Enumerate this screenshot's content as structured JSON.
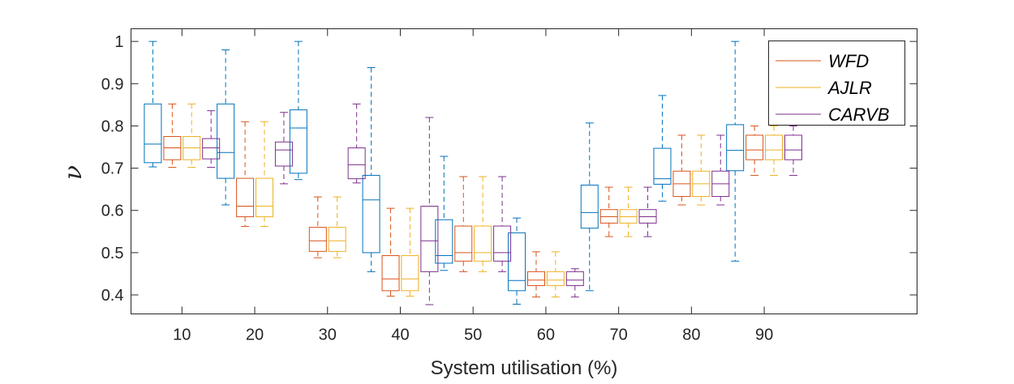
{
  "chart_data": {
    "type": "boxplot",
    "title": "",
    "xlabel": "System utilisation (%)",
    "ylabel": "ν",
    "ylim": [
      0.355,
      1.03
    ],
    "yticks": [
      0.4,
      0.5,
      0.6,
      0.7,
      0.8,
      0.9,
      1
    ],
    "ytick_labels": [
      "0.4",
      "0.5",
      "0.6",
      "0.7",
      "0.8",
      "0.9",
      "1"
    ],
    "xlim": [
      3,
      111
    ],
    "categories": [
      10,
      20,
      30,
      40,
      50,
      60,
      70,
      80,
      90
    ],
    "category_labels": [
      "10",
      "20",
      "30",
      "40",
      "50",
      "60",
      "70",
      "80",
      "90"
    ],
    "grid": false,
    "legend_position": "top-right",
    "series": [
      {
        "name": "",
        "color": "#0072BD",
        "offset": -4,
        "boxes": [
          {
            "min": 0.703,
            "q1": 0.713,
            "median": 0.757,
            "q3": 0.852,
            "max": 1.0
          },
          {
            "min": 0.613,
            "q1": 0.676,
            "median": 0.737,
            "q3": 0.852,
            "max": 0.98
          },
          {
            "min": 0.673,
            "q1": 0.688,
            "median": 0.795,
            "q3": 0.838,
            "max": 1.0
          },
          {
            "min": 0.455,
            "q1": 0.5,
            "median": 0.625,
            "q3": 0.683,
            "max": 0.938
          },
          {
            "min": 0.458,
            "q1": 0.475,
            "median": 0.493,
            "q3": 0.578,
            "max": 0.728
          },
          {
            "min": 0.378,
            "q1": 0.41,
            "median": 0.434,
            "q3": 0.547,
            "max": 0.582
          },
          {
            "min": 0.41,
            "q1": 0.558,
            "median": 0.595,
            "q3": 0.66,
            "max": 0.807
          },
          {
            "min": 0.622,
            "q1": 0.662,
            "median": 0.675,
            "q3": 0.747,
            "max": 0.872
          },
          {
            "min": 0.48,
            "q1": 0.694,
            "median": 0.742,
            "q3": 0.803,
            "max": 1.0
          }
        ]
      },
      {
        "name": "WFD",
        "color": "#D95319",
        "offset": -1.33,
        "boxes": [
          {
            "min": 0.702,
            "q1": 0.72,
            "median": 0.748,
            "q3": 0.775,
            "max": 0.852
          },
          {
            "min": 0.562,
            "q1": 0.585,
            "median": 0.61,
            "q3": 0.676,
            "max": 0.81
          },
          {
            "min": 0.488,
            "q1": 0.503,
            "median": 0.528,
            "q3": 0.56,
            "max": 0.632
          },
          {
            "min": 0.397,
            "q1": 0.41,
            "median": 0.438,
            "q3": 0.493,
            "max": 0.605
          },
          {
            "min": 0.455,
            "q1": 0.48,
            "median": 0.5,
            "q3": 0.563,
            "max": 0.68
          },
          {
            "min": 0.395,
            "q1": 0.422,
            "median": 0.435,
            "q3": 0.455,
            "max": 0.502
          },
          {
            "min": 0.538,
            "q1": 0.57,
            "median": 0.585,
            "q3": 0.602,
            "max": 0.655
          },
          {
            "min": 0.613,
            "q1": 0.633,
            "median": 0.663,
            "q3": 0.693,
            "max": 0.778
          },
          {
            "min": 0.683,
            "q1": 0.72,
            "median": 0.743,
            "q3": 0.778,
            "max": 0.8
          }
        ]
      },
      {
        "name": "AJLR",
        "color": "#EDB120",
        "offset": 1.33,
        "boxes": [
          {
            "min": 0.702,
            "q1": 0.72,
            "median": 0.748,
            "q3": 0.775,
            "max": 0.852
          },
          {
            "min": 0.562,
            "q1": 0.585,
            "median": 0.61,
            "q3": 0.676,
            "max": 0.81
          },
          {
            "min": 0.488,
            "q1": 0.503,
            "median": 0.528,
            "q3": 0.56,
            "max": 0.632
          },
          {
            "min": 0.397,
            "q1": 0.41,
            "median": 0.438,
            "q3": 0.493,
            "max": 0.605
          },
          {
            "min": 0.455,
            "q1": 0.48,
            "median": 0.5,
            "q3": 0.563,
            "max": 0.68
          },
          {
            "min": 0.395,
            "q1": 0.422,
            "median": 0.435,
            "q3": 0.455,
            "max": 0.502
          },
          {
            "min": 0.538,
            "q1": 0.57,
            "median": 0.585,
            "q3": 0.602,
            "max": 0.655
          },
          {
            "min": 0.613,
            "q1": 0.633,
            "median": 0.663,
            "q3": 0.693,
            "max": 0.778
          },
          {
            "min": 0.683,
            "q1": 0.72,
            "median": 0.743,
            "q3": 0.778,
            "max": 0.8
          }
        ]
      },
      {
        "name": "CARVB",
        "color": "#7E2F8E",
        "offset": 4,
        "boxes": [
          {
            "min": 0.702,
            "q1": 0.722,
            "median": 0.748,
            "q3": 0.77,
            "max": 0.836
          },
          {
            "min": 0.663,
            "q1": 0.705,
            "median": 0.743,
            "q3": 0.762,
            "max": 0.832
          },
          {
            "min": 0.665,
            "q1": 0.675,
            "median": 0.708,
            "q3": 0.748,
            "max": 0.852
          },
          {
            "min": 0.377,
            "q1": 0.455,
            "median": 0.528,
            "q3": 0.61,
            "max": 0.82
          },
          {
            "min": 0.455,
            "q1": 0.48,
            "median": 0.5,
            "q3": 0.563,
            "max": 0.68
          },
          {
            "min": 0.395,
            "q1": 0.422,
            "median": 0.435,
            "q3": 0.455,
            "max": 0.462
          },
          {
            "min": 0.538,
            "q1": 0.57,
            "median": 0.585,
            "q3": 0.602,
            "max": 0.655
          },
          {
            "min": 0.613,
            "q1": 0.633,
            "median": 0.663,
            "q3": 0.693,
            "max": 0.778
          },
          {
            "min": 0.683,
            "q1": 0.72,
            "median": 0.743,
            "q3": 0.778,
            "max": 0.8
          }
        ]
      }
    ]
  }
}
